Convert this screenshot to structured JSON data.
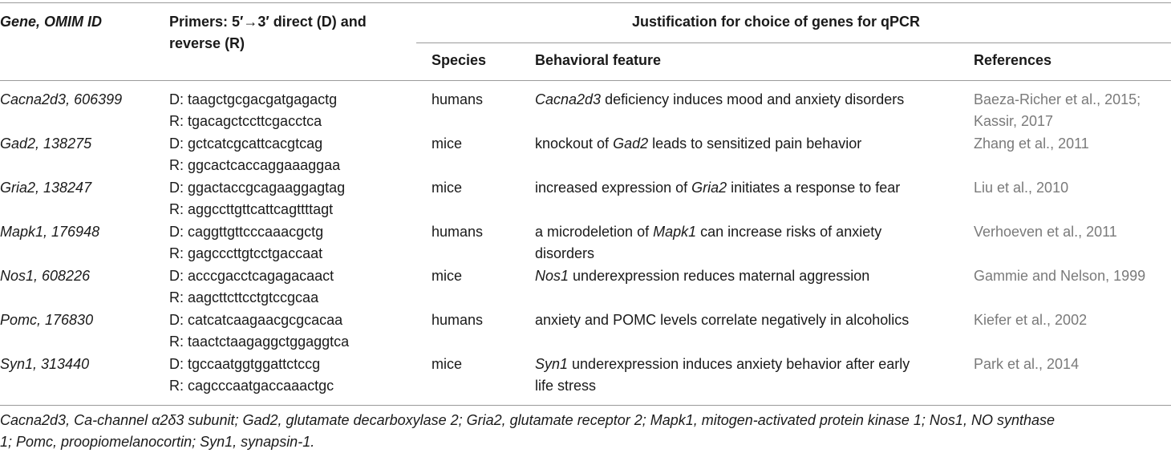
{
  "header": {
    "gene": "Gene, OMIM ID",
    "primers_line1": "Primers: 5′→3′ direct (D) and",
    "primers_line2": "reverse (R)",
    "justification": "Justification for choice of genes for qPCR",
    "species": "Species",
    "behavioral_feature": "Behavioral feature",
    "references": "References"
  },
  "rows": [
    {
      "gene": "Cacna2d3, 606399",
      "primer_d": "D: taagctgcgacgatgagactg",
      "primer_r": "R: tgacagctccttcgacctca",
      "species": "humans",
      "feature": [
        {
          "i": "Cacna2d3"
        },
        {
          "t": " deficiency induces mood and anxiety disorders"
        }
      ],
      "feature2": "",
      "ref1": "Baeza-Richer et al., 2015;",
      "ref2": "Kassir, 2017"
    },
    {
      "gene": "Gad2, 138275",
      "primer_d": "D: gctcatcgcattcacgtcag",
      "primer_r": "R: ggcactcaccaggaaaggaa",
      "species": "mice",
      "feature": [
        {
          "t": "knockout of "
        },
        {
          "i": "Gad2"
        },
        {
          "t": " leads to sensitized pain behavior"
        }
      ],
      "feature2": "",
      "ref1": "Zhang et al., 2011",
      "ref2": ""
    },
    {
      "gene": "Gria2, 138247",
      "primer_d": "D: ggactaccgcagaaggagtag",
      "primer_r": "R: aggccttgttcattcagttttagt",
      "species": "mice",
      "feature": [
        {
          "t": "increased expression of "
        },
        {
          "i": "Gria2"
        },
        {
          "t": " initiates a response to fear"
        }
      ],
      "feature2": "",
      "ref1": "Liu et al., 2010",
      "ref2": ""
    },
    {
      "gene": "Mapk1, 176948",
      "primer_d": "D: caggttgttcccaaacgctg",
      "primer_r": "R: gagcccttgtcctgaccaat",
      "species": "humans",
      "feature": [
        {
          "t": "a microdeletion of "
        },
        {
          "i": "Mapk1"
        },
        {
          "t": " can increase risks of anxiety"
        }
      ],
      "feature2": "disorders",
      "ref1": "Verhoeven et al., 2011",
      "ref2": ""
    },
    {
      "gene": "Nos1, 608226",
      "primer_d": "D: acccgacctcagagacaact",
      "primer_r": "R: aagcttcttcctgtccgcaa",
      "species": "mice",
      "feature": [
        {
          "i": "Nos1"
        },
        {
          "t": " underexpression reduces maternal aggression"
        }
      ],
      "feature2": "",
      "ref1": "Gammie and Nelson, 1999",
      "ref2": ""
    },
    {
      "gene": "Pomc, 176830",
      "primer_d": "D: catcatcaagaacgcgcacaa",
      "primer_r": "R: taactctaagaggctggaggtca",
      "species": "humans",
      "feature": [
        {
          "t": "anxiety and POMC levels correlate negatively in alcoholics"
        }
      ],
      "feature2": "",
      "ref1": "Kiefer et al., 2002",
      "ref2": ""
    },
    {
      "gene": "Syn1, 313440",
      "primer_d": "D: tgccaatggtggattctccg",
      "primer_r": "R: cagcccaatgaccaaactgc",
      "species": "mice",
      "feature": [
        {
          "i": "Syn1"
        },
        {
          "t": " underexpression induces anxiety behavior after early"
        }
      ],
      "feature2": "life stress",
      "ref1": "Park et al., 2014",
      "ref2": ""
    }
  ],
  "footnote_line1": "Cacna2d3, Ca-channel α2δ3 subunit; Gad2, glutamate decarboxylase 2; Gria2, glutamate receptor 2; Mapk1, mitogen-activated protein kinase 1; Nos1, NO synthase",
  "footnote_line2": "1; Pomc, proopiomelanocortin; Syn1, synapsin-1."
}
